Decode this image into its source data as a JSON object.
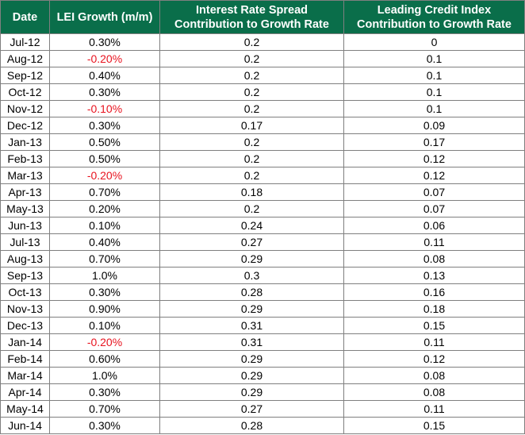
{
  "table": {
    "headers": [
      {
        "lines": [
          "Date"
        ]
      },
      {
        "lines": [
          "LEI Growth (m/m)"
        ]
      },
      {
        "lines": [
          "Interest Rate Spread",
          "Contribution to Growth Rate"
        ]
      },
      {
        "lines": [
          "Leading Credit Index",
          "Contribution to Growth Rate"
        ]
      }
    ],
    "rows": [
      [
        "Jul-12",
        "0.30%",
        "0.2",
        "0"
      ],
      [
        "Aug-12",
        "-0.20%",
        "0.2",
        "0.1"
      ],
      [
        "Sep-12",
        "0.40%",
        "0.2",
        "0.1"
      ],
      [
        "Oct-12",
        "0.30%",
        "0.2",
        "0.1"
      ],
      [
        "Nov-12",
        "-0.10%",
        "0.2",
        "0.1"
      ],
      [
        "Dec-12",
        "0.30%",
        "0.17",
        "0.09"
      ],
      [
        "Jan-13",
        "0.50%",
        "0.2",
        "0.17"
      ],
      [
        "Feb-13",
        "0.50%",
        "0.2",
        "0.12"
      ],
      [
        "Mar-13",
        "-0.20%",
        "0.2",
        "0.12"
      ],
      [
        "Apr-13",
        "0.70%",
        "0.18",
        "0.07"
      ],
      [
        "May-13",
        "0.20%",
        "0.2",
        "0.07"
      ],
      [
        "Jun-13",
        "0.10%",
        "0.24",
        "0.06"
      ],
      [
        "Jul-13",
        "0.40%",
        "0.27",
        "0.11"
      ],
      [
        "Aug-13",
        "0.70%",
        "0.29",
        "0.08"
      ],
      [
        "Sep-13",
        "1.0%",
        "0.3",
        "0.13"
      ],
      [
        "Oct-13",
        "0.30%",
        "0.28",
        "0.16"
      ],
      [
        "Nov-13",
        "0.90%",
        "0.29",
        "0.18"
      ],
      [
        "Dec-13",
        "0.10%",
        "0.31",
        "0.15"
      ],
      [
        "Jan-14",
        "-0.20%",
        "0.31",
        "0.11"
      ],
      [
        "Feb-14",
        "0.60%",
        "0.29",
        "0.12"
      ],
      [
        "Mar-14",
        "1.0%",
        "0.29",
        "0.08"
      ],
      [
        "Apr-14",
        "0.30%",
        "0.29",
        "0.08"
      ],
      [
        "May-14",
        "0.70%",
        "0.27",
        "0.11"
      ],
      [
        "Jun-14",
        "0.30%",
        "0.28",
        "0.15"
      ]
    ]
  },
  "colors": {
    "header_background": "#0a6e4a",
    "header_text": "#ffffff",
    "negative_value": "#e8131f",
    "border": "#7f7f7f"
  }
}
